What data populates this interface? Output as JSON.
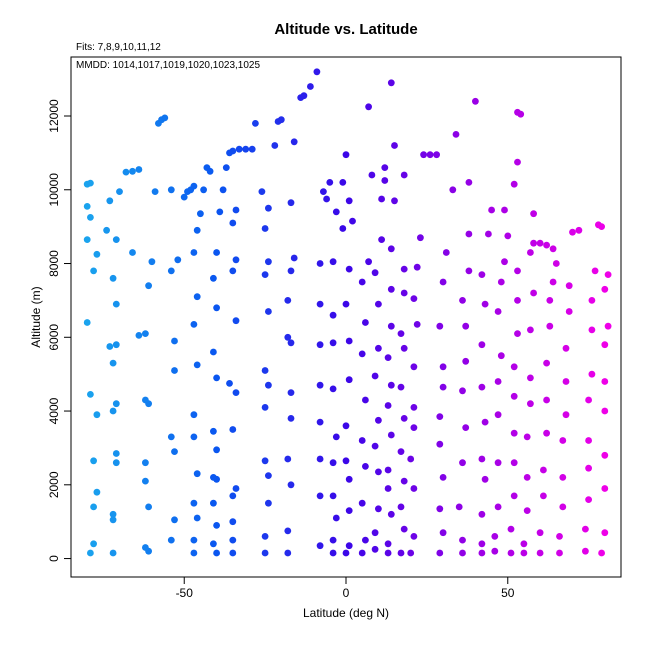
{
  "chart_data": {
    "type": "scatter",
    "title": "Altitude vs. Latitude",
    "notes": [
      "Fits: 7,8,9,10,11,12",
      "MMDD: 1014,1017,1019,1020,1023,1025"
    ],
    "xlabel": "Latitude (deg N)",
    "ylabel": "Altitude (m)",
    "xlim": [
      -85,
      85
    ],
    "ylim": [
      -500,
      13600
    ],
    "xticks": [
      -50,
      0,
      50
    ],
    "yticks": [
      0,
      2000,
      4000,
      6000,
      8000,
      10000,
      12000
    ],
    "grid": false,
    "color_gradient": [
      "#1aa3ee",
      "#0a56f0",
      "#3b06e8",
      "#9a00e6",
      "#ee00e8"
    ],
    "points": [
      [
        -79,
        150
      ],
      [
        -78,
        400
      ],
      [
        -78,
        1400
      ],
      [
        -77,
        1800
      ],
      [
        -78,
        2650
      ],
      [
        -77,
        3900
      ],
      [
        -79,
        4450
      ],
      [
        -80,
        6400
      ],
      [
        -78,
        7800
      ],
      [
        -77,
        8250
      ],
      [
        -80,
        8650
      ],
      [
        -79,
        9250
      ],
      [
        -80,
        9550
      ],
      [
        -80,
        10150
      ],
      [
        -79,
        10180
      ],
      [
        -72,
        150
      ],
      [
        -72,
        1050
      ],
      [
        -72,
        1200
      ],
      [
        -71,
        2600
      ],
      [
        -71,
        2850
      ],
      [
        -72,
        4000
      ],
      [
        -71,
        4200
      ],
      [
        -72,
        5300
      ],
      [
        -71,
        5800
      ],
      [
        -73,
        5750
      ],
      [
        -71,
        6900
      ],
      [
        -72,
        7600
      ],
      [
        -71,
        8650
      ],
      [
        -74,
        8900
      ],
      [
        -73,
        9700
      ],
      [
        -70,
        9950
      ],
      [
        -68,
        10480
      ],
      [
        -66,
        10500
      ],
      [
        -64,
        10550
      ],
      [
        -66,
        8300
      ],
      [
        -61,
        200
      ],
      [
        -62,
        300
      ],
      [
        -61,
        1400
      ],
      [
        -62,
        2100
      ],
      [
        -62,
        2600
      ],
      [
        -61,
        4200
      ],
      [
        -62,
        4300
      ],
      [
        -62,
        6100
      ],
      [
        -64,
        6050
      ],
      [
        -61,
        7400
      ],
      [
        -60,
        8050
      ],
      [
        -59,
        9950
      ],
      [
        -58,
        11800
      ],
      [
        -57,
        11900
      ],
      [
        -56,
        11950
      ],
      [
        -54,
        500
      ],
      [
        -53,
        1050
      ],
      [
        -53,
        2900
      ],
      [
        -54,
        3300
      ],
      [
        -53,
        5100
      ],
      [
        -53,
        5900
      ],
      [
        -54,
        7800
      ],
      [
        -52,
        8100
      ],
      [
        -54,
        10000
      ],
      [
        -50,
        9800
      ],
      [
        -49,
        9950
      ],
      [
        -48,
        10000
      ],
      [
        -47,
        10100
      ],
      [
        -47,
        150
      ],
      [
        -47,
        500
      ],
      [
        -46,
        1100
      ],
      [
        -47,
        1500
      ],
      [
        -46,
        2300
      ],
      [
        -47,
        3300
      ],
      [
        -47,
        3900
      ],
      [
        -46,
        5250
      ],
      [
        -47,
        6350
      ],
      [
        -46,
        7100
      ],
      [
        -47,
        8300
      ],
      [
        -46,
        8900
      ],
      [
        -45,
        9350
      ],
      [
        -44,
        10000
      ],
      [
        -43,
        10600
      ],
      [
        -42,
        10500
      ],
      [
        -40,
        150
      ],
      [
        -41,
        400
      ],
      [
        -40,
        900
      ],
      [
        -41,
        1500
      ],
      [
        -40,
        2150
      ],
      [
        -41,
        2200
      ],
      [
        -40,
        2950
      ],
      [
        -41,
        3450
      ],
      [
        -40,
        4900
      ],
      [
        -41,
        5600
      ],
      [
        -40,
        6800
      ],
      [
        -41,
        7600
      ],
      [
        -40,
        8300
      ],
      [
        -39,
        9400
      ],
      [
        -38,
        10000
      ],
      [
        -37,
        10600
      ],
      [
        -36,
        11000
      ],
      [
        -35,
        11050
      ],
      [
        -35,
        150
      ],
      [
        -35,
        500
      ],
      [
        -35,
        1000
      ],
      [
        -35,
        1700
      ],
      [
        -34,
        1900
      ],
      [
        -35,
        3500
      ],
      [
        -34,
        4500
      ],
      [
        -36,
        4750
      ],
      [
        -34,
        6450
      ],
      [
        -35,
        7800
      ],
      [
        -34,
        8100
      ],
      [
        -35,
        9100
      ],
      [
        -34,
        9450
      ],
      [
        -33,
        11100
      ],
      [
        -31,
        11100
      ],
      [
        -29,
        11100
      ],
      [
        -28,
        11800
      ],
      [
        -25,
        150
      ],
      [
        -25,
        600
      ],
      [
        -24,
        1500
      ],
      [
        -25,
        2650
      ],
      [
        -24,
        2250
      ],
      [
        -25,
        4100
      ],
      [
        -24,
        4700
      ],
      [
        -25,
        5100
      ],
      [
        -24,
        6700
      ],
      [
        -25,
        7700
      ],
      [
        -24,
        8050
      ],
      [
        -25,
        8950
      ],
      [
        -26,
        9950
      ],
      [
        -24,
        9500
      ],
      [
        -22,
        11200
      ],
      [
        -21,
        11850
      ],
      [
        -20,
        11900
      ],
      [
        -18,
        150
      ],
      [
        -18,
        750
      ],
      [
        -17,
        2000
      ],
      [
        -18,
        2700
      ],
      [
        -17,
        3800
      ],
      [
        -17,
        4500
      ],
      [
        -18,
        6000
      ],
      [
        -17,
        5850
      ],
      [
        -18,
        7000
      ],
      [
        -17,
        7800
      ],
      [
        -16,
        8150
      ],
      [
        -17,
        9650
      ],
      [
        -16,
        11300
      ],
      [
        -14,
        12500
      ],
      [
        -13,
        12550
      ],
      [
        -11,
        12800
      ],
      [
        -9,
        13200
      ],
      [
        -8,
        350
      ],
      [
        -8,
        1700
      ],
      [
        -8,
        2700
      ],
      [
        -8,
        3700
      ],
      [
        -8,
        4700
      ],
      [
        -8,
        5800
      ],
      [
        -8,
        6900
      ],
      [
        -8,
        8000
      ],
      [
        -7,
        9950
      ],
      [
        -6,
        9750
      ],
      [
        -5,
        10200
      ],
      [
        -4,
        150
      ],
      [
        -4,
        500
      ],
      [
        -3,
        1100
      ],
      [
        -4,
        1700
      ],
      [
        -4,
        2600
      ],
      [
        -3,
        3300
      ],
      [
        -4,
        4600
      ],
      [
        -4,
        5850
      ],
      [
        -4,
        6600
      ],
      [
        -4,
        8050
      ],
      [
        -3,
        9400
      ],
      [
        -1,
        10200
      ],
      [
        -1,
        8950
      ],
      [
        0,
        10950
      ],
      [
        0,
        150
      ],
      [
        1,
        350
      ],
      [
        1,
        1300
      ],
      [
        0,
        2650
      ],
      [
        1,
        2150
      ],
      [
        0,
        3600
      ],
      [
        1,
        4850
      ],
      [
        1,
        5900
      ],
      [
        0,
        6900
      ],
      [
        1,
        7850
      ],
      [
        2,
        9150
      ],
      [
        1,
        9700
      ],
      [
        5,
        150
      ],
      [
        6,
        500
      ],
      [
        5,
        1500
      ],
      [
        6,
        2500
      ],
      [
        5,
        3200
      ],
      [
        6,
        4300
      ],
      [
        5,
        5550
      ],
      [
        6,
        6400
      ],
      [
        5,
        7500
      ],
      [
        7,
        8050
      ],
      [
        7,
        12250
      ],
      [
        8,
        10400
      ],
      [
        9,
        250
      ],
      [
        9,
        700
      ],
      [
        10,
        1350
      ],
      [
        10,
        2350
      ],
      [
        9,
        3050
      ],
      [
        10,
        3750
      ],
      [
        9,
        4950
      ],
      [
        10,
        5700
      ],
      [
        10,
        6900
      ],
      [
        9,
        7750
      ],
      [
        11,
        8650
      ],
      [
        11,
        9750
      ],
      [
        12,
        10600
      ],
      [
        12,
        10250
      ],
      [
        13,
        150
      ],
      [
        13,
        400
      ],
      [
        14,
        1200
      ],
      [
        13,
        1900
      ],
      [
        13,
        2400
      ],
      [
        14,
        3350
      ],
      [
        13,
        4150
      ],
      [
        14,
        4700
      ],
      [
        13,
        5450
      ],
      [
        14,
        6300
      ],
      [
        14,
        7300
      ],
      [
        14,
        8400
      ],
      [
        15,
        9700
      ],
      [
        15,
        11200
      ],
      [
        14,
        12900
      ],
      [
        17,
        150
      ],
      [
        18,
        800
      ],
      [
        17,
        1400
      ],
      [
        18,
        2100
      ],
      [
        17,
        2900
      ],
      [
        18,
        3800
      ],
      [
        17,
        4650
      ],
      [
        18,
        5700
      ],
      [
        17,
        6100
      ],
      [
        18,
        7200
      ],
      [
        18,
        7850
      ],
      [
        18,
        10400
      ],
      [
        20,
        150
      ],
      [
        21,
        600
      ],
      [
        21,
        1900
      ],
      [
        20,
        2700
      ],
      [
        21,
        3550
      ],
      [
        21,
        4100
      ],
      [
        21,
        5200
      ],
      [
        22,
        6350
      ],
      [
        21,
        7050
      ],
      [
        22,
        7900
      ],
      [
        23,
        8700
      ],
      [
        24,
        10950
      ],
      [
        26,
        10950
      ],
      [
        28,
        10950
      ],
      [
        29,
        150
      ],
      [
        30,
        700
      ],
      [
        29,
        1350
      ],
      [
        30,
        2200
      ],
      [
        29,
        3100
      ],
      [
        29,
        3850
      ],
      [
        30,
        4650
      ],
      [
        30,
        5200
      ],
      [
        29,
        6300
      ],
      [
        30,
        7500
      ],
      [
        31,
        8300
      ],
      [
        33,
        10000
      ],
      [
        34,
        11500
      ],
      [
        36,
        150
      ],
      [
        36,
        500
      ],
      [
        35,
        1400
      ],
      [
        36,
        2600
      ],
      [
        37,
        3550
      ],
      [
        36,
        4550
      ],
      [
        37,
        5350
      ],
      [
        37,
        6300
      ],
      [
        36,
        7000
      ],
      [
        38,
        7800
      ],
      [
        38,
        8800
      ],
      [
        38,
        10200
      ],
      [
        40,
        12400
      ],
      [
        42,
        150
      ],
      [
        42,
        400
      ],
      [
        42,
        1200
      ],
      [
        43,
        2150
      ],
      [
        42,
        2700
      ],
      [
        43,
        3700
      ],
      [
        42,
        4650
      ],
      [
        42,
        5800
      ],
      [
        43,
        6900
      ],
      [
        42,
        7700
      ],
      [
        44,
        8800
      ],
      [
        45,
        9450
      ],
      [
        46,
        200
      ],
      [
        46,
        600
      ],
      [
        47,
        1400
      ],
      [
        47,
        2600
      ],
      [
        47,
        3900
      ],
      [
        47,
        4800
      ],
      [
        48,
        5500
      ],
      [
        47,
        6700
      ],
      [
        48,
        7500
      ],
      [
        49,
        8050
      ],
      [
        49,
        9450
      ],
      [
        50,
        8750
      ],
      [
        51,
        150
      ],
      [
        51,
        800
      ],
      [
        52,
        1700
      ],
      [
        52,
        2600
      ],
      [
        52,
        3400
      ],
      [
        52,
        4400
      ],
      [
        52,
        5200
      ],
      [
        53,
        6100
      ],
      [
        53,
        7000
      ],
      [
        53,
        7800
      ],
      [
        52,
        10150
      ],
      [
        53,
        10750
      ],
      [
        53,
        12100
      ],
      [
        54,
        12050
      ],
      [
        55,
        150
      ],
      [
        55,
        400
      ],
      [
        56,
        1300
      ],
      [
        56,
        2200
      ],
      [
        56,
        3300
      ],
      [
        57,
        4200
      ],
      [
        57,
        4900
      ],
      [
        57,
        6200
      ],
      [
        58,
        7200
      ],
      [
        57,
        8300
      ],
      [
        58,
        9350
      ],
      [
        58,
        8550
      ],
      [
        60,
        8550
      ],
      [
        62,
        8500
      ],
      [
        60,
        150
      ],
      [
        60,
        700
      ],
      [
        61,
        1700
      ],
      [
        61,
        2400
      ],
      [
        62,
        3400
      ],
      [
        62,
        4300
      ],
      [
        62,
        5300
      ],
      [
        63,
        6300
      ],
      [
        63,
        7000
      ],
      [
        64,
        7500
      ],
      [
        64,
        8400
      ],
      [
        65,
        8000
      ],
      [
        66,
        150
      ],
      [
        66,
        600
      ],
      [
        67,
        1400
      ],
      [
        67,
        2200
      ],
      [
        67,
        3200
      ],
      [
        68,
        3900
      ],
      [
        68,
        4800
      ],
      [
        68,
        5700
      ],
      [
        69,
        6700
      ],
      [
        69,
        7400
      ],
      [
        70,
        8850
      ],
      [
        72,
        8900
      ],
      [
        74,
        200
      ],
      [
        74,
        800
      ],
      [
        75,
        1600
      ],
      [
        75,
        2450
      ],
      [
        75,
        3200
      ],
      [
        75,
        4300
      ],
      [
        76,
        5000
      ],
      [
        76,
        6200
      ],
      [
        76,
        7000
      ],
      [
        77,
        7800
      ],
      [
        78,
        9050
      ],
      [
        79,
        9000
      ],
      [
        79,
        150
      ],
      [
        80,
        700
      ],
      [
        80,
        1900
      ],
      [
        80,
        2800
      ],
      [
        80,
        4000
      ],
      [
        80,
        4800
      ],
      [
        80,
        5800
      ],
      [
        81,
        6300
      ],
      [
        80,
        7300
      ],
      [
        81,
        7700
      ]
    ]
  }
}
